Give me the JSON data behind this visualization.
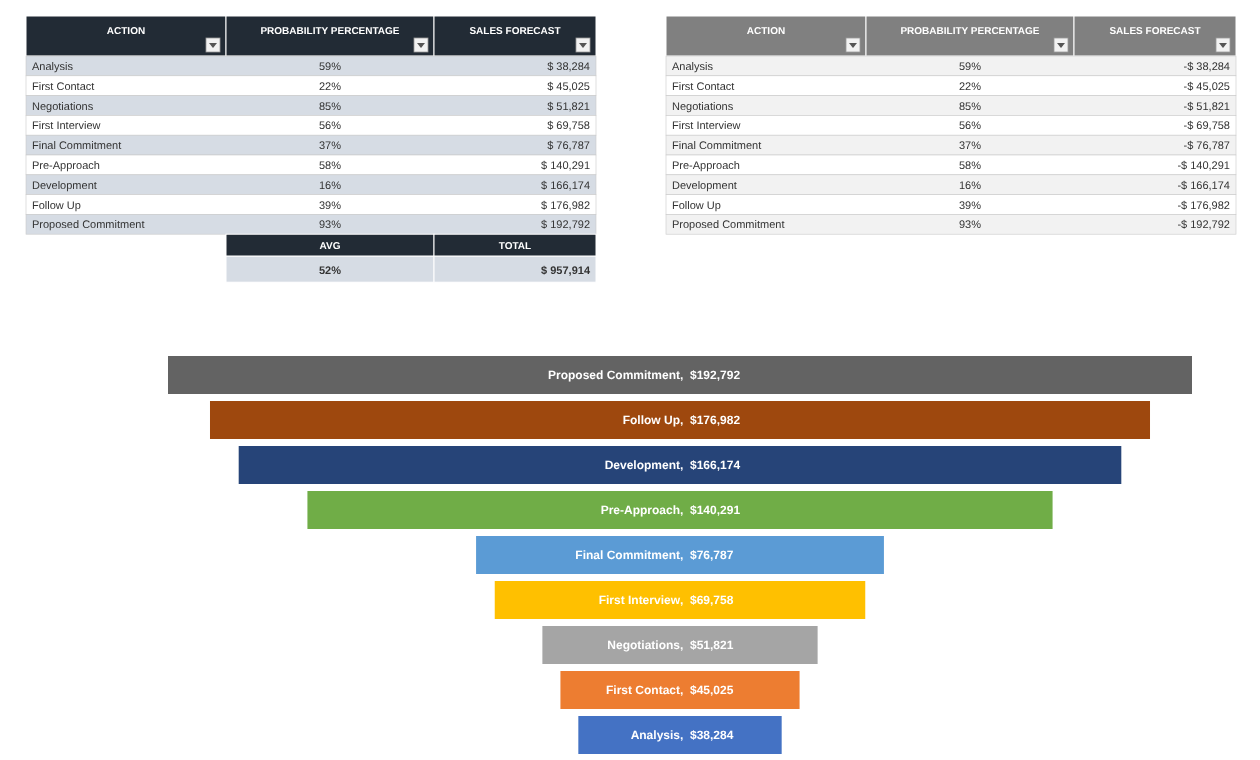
{
  "chart_data": [
    {
      "type": "other",
      "xlabel": "ACTION",
      "categories": [
        "Analysis",
        "First Contact",
        "Negotiations",
        "First Interview",
        "Final Commitment",
        "Pre-Approach",
        "Development",
        "Follow Up",
        "Proposed Commitment"
      ],
      "series": [
        {
          "name": "PROBABILITY PERCENTAGE",
          "colors": [
            "#d6dce4",
            "#ffffff",
            "#d6dce4",
            "#ffffff",
            "#d6dce4",
            "#ffffff",
            "#d6dce4",
            "#ffffff",
            "#d6dce4"
          ],
          "values": [
            59,
            22,
            85,
            56,
            37,
            58,
            16,
            39,
            93
          ],
          "value_labels": [
            "59%",
            "22%",
            "85%",
            "56%",
            "37%",
            "58%",
            "16%",
            "39%",
            "93%"
          ]
        },
        {
          "name": "SALES FORECAST",
          "values": [
            38284,
            45025,
            51821,
            69758,
            76787,
            140291,
            166174,
            176982,
            192792
          ],
          "value_labels": [
            "$ 38,284",
            "$ 45,025",
            "$ 51,821",
            "$ 69,758",
            "$ 76,787",
            "$ 140,291",
            "$ 166,174",
            "$ 176,982",
            "$ 192,792"
          ]
        }
      ],
      "annotations": [
        "AVG",
        "52%",
        "TOTAL",
        "$ 957,914"
      ]
    },
    {
      "type": "other",
      "xlabel": "ACTION",
      "categories": [
        "Analysis",
        "First Contact",
        "Negotiations",
        "First Interview",
        "Final Commitment",
        "Pre-Approach",
        "Development",
        "Follow Up",
        "Proposed Commitment"
      ],
      "series": [
        {
          "name": "PROBABILITY PERCENTAGE",
          "colors": [
            "#f2f2f2",
            "#ffffff",
            "#f2f2f2",
            "#ffffff",
            "#f2f2f2",
            "#ffffff",
            "#f2f2f2",
            "#ffffff",
            "#f2f2f2"
          ],
          "values": [
            59,
            22,
            85,
            56,
            37,
            58,
            16,
            39,
            93
          ],
          "value_labels": [
            "59%",
            "22%",
            "85%",
            "56%",
            "37%",
            "58%",
            "16%",
            "39%",
            "93%"
          ]
        },
        {
          "name": "SALES FORECAST",
          "values": [
            -38284,
            -45025,
            -51821,
            -69758,
            -76787,
            -140291,
            -166174,
            -176982,
            -192792
          ],
          "value_labels": [
            "-$ 38,284",
            "-$ 45,025",
            "-$ 51,821",
            "-$ 69,758",
            "-$ 76,787",
            "-$ 140,291",
            "-$ 166,174",
            "-$ 176,982",
            "-$ 192,792"
          ]
        }
      ]
    },
    {
      "type": "other",
      "categories": [
        "Proposed Commitment",
        "Follow Up",
        "Development",
        "Pre-Approach",
        "Final Commitment",
        "First Interview",
        "Negotiations",
        "First Contact",
        "Analysis"
      ],
      "values": [
        192792,
        176982,
        166174,
        140291,
        76787,
        69758,
        51821,
        45025,
        38284
      ],
      "value_labels": [
        ",  $192,792",
        ",  $176,982",
        ",  $166,174",
        ",  $140,291",
        ",  $76,787",
        ",  $69,758",
        ",  $51,821",
        ",  $45,025",
        ",  $38,284"
      ],
      "colors": [
        "#636363",
        "#9e480e",
        "#264478",
        "#70ad47",
        "#5b9bd5",
        "#ffc000",
        "#a5a5a5",
        "#ed7d31",
        "#4472c4"
      ]
    }
  ]
}
